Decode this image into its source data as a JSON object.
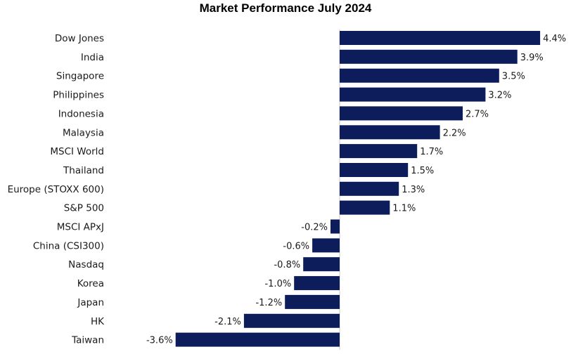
{
  "chart_data": {
    "type": "bar",
    "orientation": "horizontal",
    "title": "Market Performance July 2024",
    "categories": [
      "Dow Jones",
      "India",
      "Singapore",
      "Philippines",
      "Indonesia",
      "Malaysia",
      "MSCI World",
      "Thailand",
      "Europe (STOXX 600)",
      "S&P 500",
      "MSCI APxJ",
      "China (CSI300)",
      "Nasdaq",
      "Korea",
      "Japan",
      "HK",
      "Taiwan"
    ],
    "values": [
      4.4,
      3.9,
      3.5,
      3.2,
      2.7,
      2.2,
      1.7,
      1.5,
      1.3,
      1.1,
      -0.2,
      -0.6,
      -0.8,
      -1.0,
      -1.2,
      -2.1,
      -3.6
    ],
    "value_labels": [
      "4.4%",
      "3.9%",
      "3.5%",
      "3.2%",
      "2.7%",
      "2.2%",
      "1.7%",
      "1.5%",
      "1.3%",
      "1.1%",
      "-0.2%",
      "-0.6%",
      "-0.8%",
      "-1.0%",
      "-1.2%",
      "-2.1%",
      "-3.6%"
    ],
    "xlabel": "",
    "ylabel": "",
    "grid": false,
    "legend": "none",
    "bar_color": "#0d1c5a"
  }
}
